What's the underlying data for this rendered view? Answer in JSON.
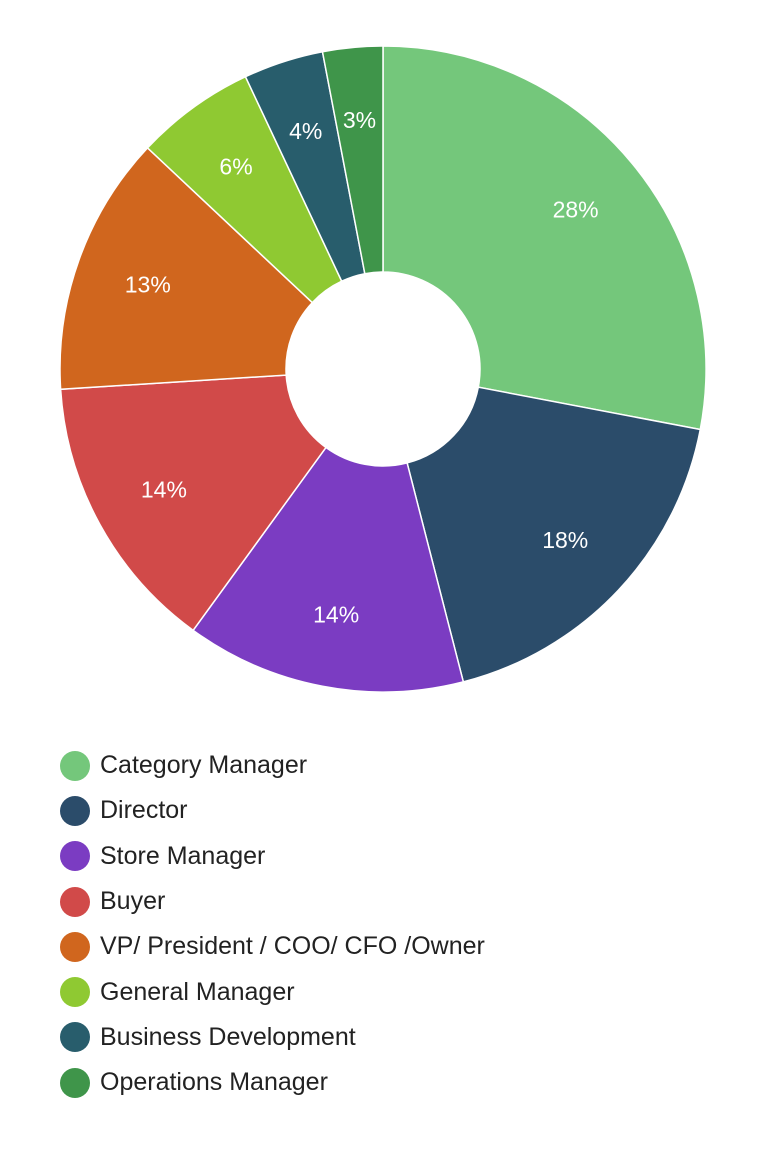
{
  "chart_data": {
    "type": "pie",
    "donut": true,
    "title": "",
    "legend_position": "bottom-left",
    "categories": [
      "Category Manager",
      "Director",
      "Store Manager",
      "Buyer",
      "VP/ President / COO/ CFO /Owner",
      "General Manager",
      "Business Development",
      "Operations Manager"
    ],
    "values": [
      28,
      18,
      14,
      14,
      13,
      6,
      4,
      3
    ],
    "labels": [
      "28%",
      "18%",
      "14%",
      "14%",
      "13%",
      "6%",
      "4%",
      "3%"
    ],
    "colors": [
      "#74c77b",
      "#2b4c6a",
      "#7b3cc2",
      "#d14a49",
      "#d0661e",
      "#8fc932",
      "#285d6c",
      "#3f954a"
    ]
  }
}
